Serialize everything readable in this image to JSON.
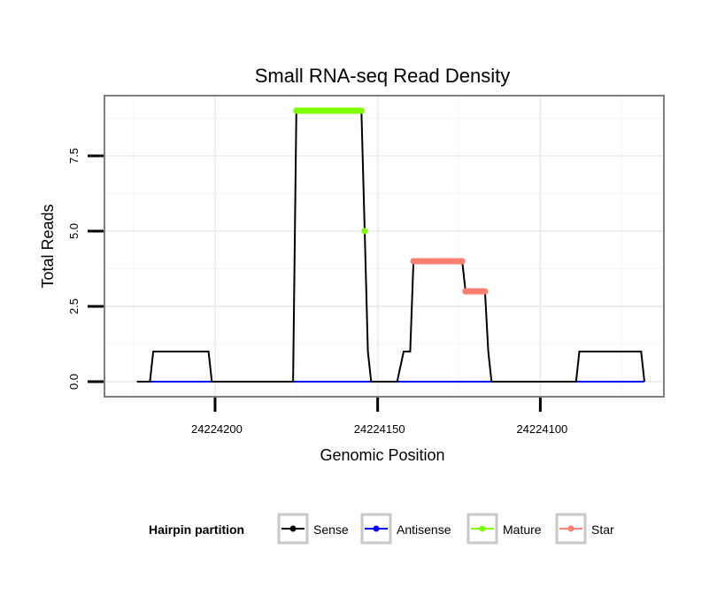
{
  "chart_data": {
    "type": "line",
    "title": "Small RNA-seq Read Density",
    "xlabel": "Genomic Position",
    "ylabel": "Total Reads",
    "xlim": [
      24224234,
      24224062
    ],
    "x_reversed": true,
    "ylim": [
      -0.5,
      9.5
    ],
    "x_ticks": [
      24224200,
      24224150,
      24224100
    ],
    "x_tick_labels": [
      "24224200",
      "24224150",
      "24224100"
    ],
    "y_ticks": [
      0.0,
      2.5,
      5.0,
      7.5
    ],
    "y_tick_labels": [
      "0.0",
      "2.5",
      "5.0",
      "7.5"
    ],
    "grid": true,
    "legend": {
      "title": "Hairpin partition",
      "position": "bottom",
      "entries": [
        "Sense",
        "Antisense",
        "Mature",
        "Star"
      ]
    },
    "series": [
      {
        "name": "Sense",
        "color": "#000000",
        "markers": false,
        "x": [
          24224224,
          24224220,
          24224219,
          24224202,
          24224201,
          24224176,
          24224175,
          24224174,
          24224153,
          24224152,
          24224148,
          24224149,
          24224127,
          24224126,
          24224100,
          24224099,
          24224074,
          24224073,
          24224071,
          24224150,
          24224151
        ],
        "points": [
          [
            24224224,
            0
          ],
          [
            24224220,
            0
          ],
          [
            24224219,
            1
          ],
          [
            24224202,
            1
          ],
          [
            24224201,
            0
          ],
          [
            24224176,
            0
          ],
          [
            24224175,
            9
          ],
          [
            24224155,
            9
          ],
          [
            24224154,
            5
          ],
          [
            24224153,
            1
          ],
          [
            24224152,
            0
          ],
          [
            24224144,
            0
          ],
          [
            24224142,
            1
          ],
          [
            24224140,
            1
          ],
          [
            24224139,
            4
          ],
          [
            24224124,
            4
          ],
          [
            24224123,
            3
          ],
          [
            24224117,
            3
          ],
          [
            24224116,
            1
          ],
          [
            24224115,
            0
          ],
          [
            24224089,
            0
          ],
          [
            24224088,
            1
          ],
          [
            24224069,
            1
          ],
          [
            24224068,
            0
          ]
        ]
      },
      {
        "name": "Antisense",
        "color": "#0000ff",
        "markers": false,
        "points": [
          [
            24224220,
            0
          ],
          [
            24224068,
            0
          ]
        ]
      },
      {
        "name": "Mature",
        "color": "#7fff00",
        "markers": true,
        "points": [
          [
            24224175,
            9
          ],
          [
            24224173,
            9
          ],
          [
            24224171,
            9
          ],
          [
            24224169,
            9
          ],
          [
            24224167,
            9
          ],
          [
            24224165,
            9
          ],
          [
            24224163,
            9
          ],
          [
            24224161,
            9
          ],
          [
            24224159,
            9
          ],
          [
            24224157,
            9
          ],
          [
            24224155,
            9
          ],
          [
            24224154,
            5
          ]
        ]
      },
      {
        "name": "Star",
        "color": "#fa8072",
        "markers": true,
        "points": [
          [
            24224139,
            4
          ],
          [
            24224137,
            4
          ],
          [
            24224135,
            4
          ],
          [
            24224133,
            4
          ],
          [
            24224131,
            4
          ],
          [
            24224129,
            4
          ],
          [
            24224127,
            4
          ],
          [
            24224125,
            4
          ],
          [
            24224124,
            4
          ],
          [
            24224123,
            3
          ],
          [
            24224121,
            3
          ],
          [
            24224119,
            3
          ],
          [
            24224117,
            3
          ]
        ]
      }
    ]
  }
}
